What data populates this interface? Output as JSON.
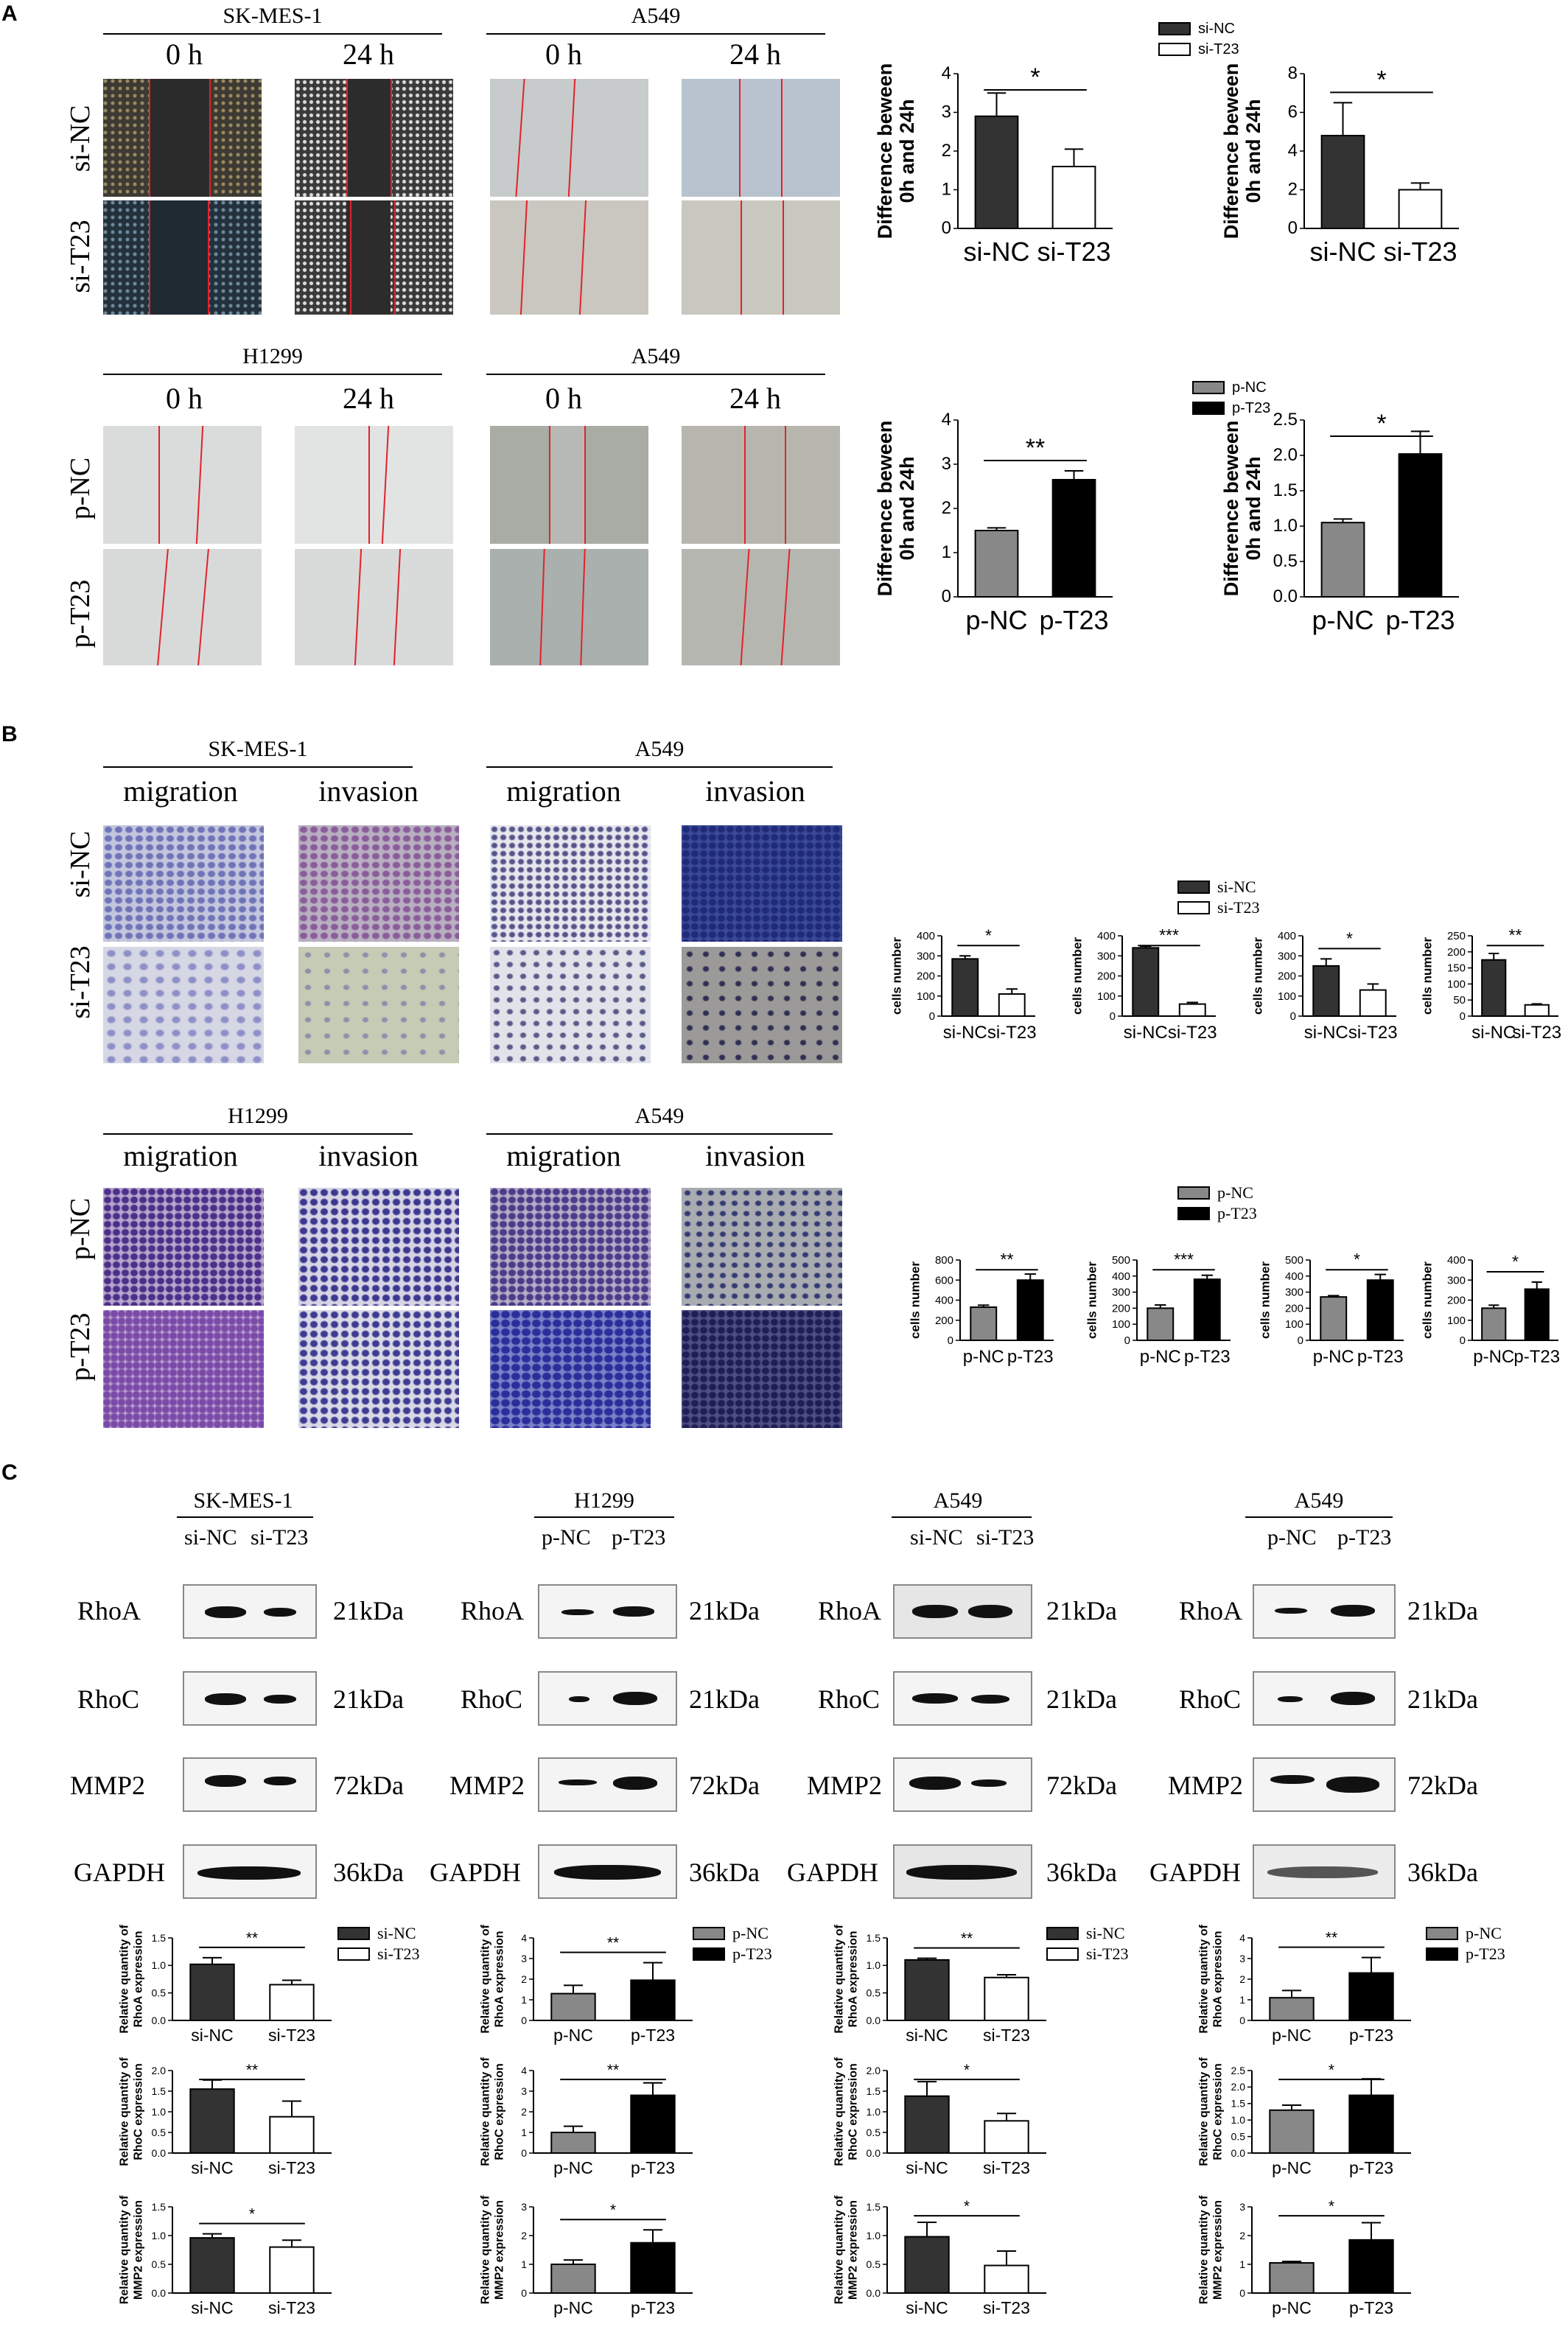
{
  "panels": {
    "a": "A",
    "b": "B",
    "c": "C"
  },
  "colors": {
    "dark": "#333333",
    "white": "#ffffff",
    "grey": "#888888",
    "black": "#000000",
    "scratch": "#e2222a"
  },
  "panelA": {
    "top": {
      "cell1": "SK-MES-1",
      "cell2": "A549",
      "t0": "0 h",
      "t24": "24 h",
      "row1": "si-NC",
      "row2": "si-T23"
    },
    "bottom": {
      "cell1": "H1299",
      "cell2": "A549",
      "t0": "0 h",
      "t24": "24 h",
      "row1": "p-NC",
      "row2": "p-T23"
    }
  },
  "panelB": {
    "top": {
      "cell1": "SK-MES-1",
      "cell2": "A549",
      "h1": "migration",
      "h2": "invasion",
      "row1": "si-NC",
      "row2": "si-T23"
    },
    "bottom": {
      "cell1": "H1299",
      "cell2": "A549",
      "h1": "migration",
      "h2": "invasion",
      "row1": "p-NC",
      "row2": "p-T23"
    }
  },
  "panelC": {
    "blots": [
      {
        "cell": "SK-MES-1",
        "lane1": "si-NC",
        "lane2": "si-T23"
      },
      {
        "cell": "H1299",
        "lane1": "p-NC",
        "lane2": "p-T23"
      },
      {
        "cell": "A549",
        "lane1": "si-NC",
        "lane2": "si-T23"
      },
      {
        "cell": "A549",
        "lane1": "p-NC",
        "lane2": "p-T23"
      }
    ],
    "proteins": [
      "RhoA",
      "RhoC",
      "MMP2",
      "GAPDH"
    ],
    "kda": [
      "21kDa",
      "21kDa",
      "72kDa",
      "36kDa"
    ]
  },
  "legends": {
    "si": [
      "si-NC",
      "si-T23"
    ],
    "p": [
      "p-NC",
      "p-T23"
    ]
  },
  "chart_data": [
    {
      "id": "a1",
      "type": "bar",
      "categories": [
        "si-NC",
        "si-T23"
      ],
      "values": [
        2.9,
        1.6
      ],
      "errors": [
        0.6,
        0.45
      ],
      "fills": [
        "dark",
        "white"
      ],
      "ylabel": "Difference beween\n0h and 24h",
      "ylim": [
        0,
        4
      ],
      "yticks": [
        0,
        1,
        2,
        3,
        4
      ],
      "sig": "*",
      "grid": false
    },
    {
      "id": "a2",
      "type": "bar",
      "categories": [
        "si-NC",
        "si-T23"
      ],
      "values": [
        4.8,
        2.0
      ],
      "errors": [
        1.7,
        0.35
      ],
      "fills": [
        "dark",
        "white"
      ],
      "ylabel": "Difference beween\n0h and 24h",
      "ylim": [
        0,
        8
      ],
      "yticks": [
        0,
        2,
        4,
        6,
        8
      ],
      "sig": "*",
      "grid": false
    },
    {
      "id": "a3",
      "type": "bar",
      "categories": [
        "p-NC",
        "p-T23"
      ],
      "values": [
        1.5,
        2.65
      ],
      "errors": [
        0.06,
        0.2
      ],
      "fills": [
        "grey",
        "black"
      ],
      "ylabel": "Difference beween\n0h and 24h",
      "ylim": [
        0,
        4
      ],
      "yticks": [
        0,
        1,
        2,
        3,
        4
      ],
      "sig": "**",
      "grid": false
    },
    {
      "id": "a4",
      "type": "bar",
      "categories": [
        "p-NC",
        "p-T23"
      ],
      "values": [
        1.05,
        2.02
      ],
      "errors": [
        0.05,
        0.32
      ],
      "fills": [
        "grey",
        "black"
      ],
      "ylabel": "Difference beween\n0h and 24h",
      "ylim": [
        0,
        2.5
      ],
      "yticks": [
        0.0,
        0.5,
        1.0,
        1.5,
        2.0,
        2.5
      ],
      "sig": "*",
      "grid": false
    },
    {
      "id": "b1",
      "type": "bar",
      "categories": [
        "si-NC",
        "si-T23"
      ],
      "values": [
        285,
        110
      ],
      "errors": [
        15,
        25
      ],
      "fills": [
        "dark",
        "white"
      ],
      "ylabel": "cells number",
      "ylim": [
        0,
        400
      ],
      "yticks": [
        0,
        100,
        200,
        300,
        400
      ],
      "sig": "*",
      "grid": false
    },
    {
      "id": "b2",
      "type": "bar",
      "categories": [
        "si-NC",
        "si-T23"
      ],
      "values": [
        340,
        60
      ],
      "errors": [
        8,
        8
      ],
      "fills": [
        "dark",
        "white"
      ],
      "ylabel": "cells number",
      "ylim": [
        0,
        400
      ],
      "yticks": [
        0,
        100,
        200,
        300,
        400
      ],
      "sig": "***",
      "grid": false
    },
    {
      "id": "b3",
      "type": "bar",
      "categories": [
        "si-NC",
        "si-T23"
      ],
      "values": [
        250,
        130
      ],
      "errors": [
        35,
        30
      ],
      "fills": [
        "dark",
        "white"
      ],
      "ylabel": "cells number",
      "ylim": [
        0,
        400
      ],
      "yticks": [
        0,
        100,
        200,
        300,
        400
      ],
      "sig": "*",
      "grid": false
    },
    {
      "id": "b4",
      "type": "bar",
      "categories": [
        "si-NC",
        "si-T23"
      ],
      "values": [
        175,
        35
      ],
      "errors": [
        20,
        3
      ],
      "fills": [
        "dark",
        "white"
      ],
      "ylabel": "cells number",
      "ylim": [
        0,
        250
      ],
      "yticks": [
        0,
        50,
        100,
        150,
        200,
        250
      ],
      "sig": "**",
      "grid": false
    },
    {
      "id": "b5",
      "type": "bar",
      "categories": [
        "p-NC",
        "p-T23"
      ],
      "values": [
        330,
        600
      ],
      "errors": [
        20,
        60
      ],
      "fills": [
        "grey",
        "black"
      ],
      "ylabel": "cells number",
      "ylim": [
        0,
        800
      ],
      "yticks": [
        0,
        200,
        400,
        600,
        800
      ],
      "sig": "**",
      "grid": false
    },
    {
      "id": "b6",
      "type": "bar",
      "categories": [
        "p-NC",
        "p-T23"
      ],
      "values": [
        200,
        380
      ],
      "errors": [
        20,
        25
      ],
      "fills": [
        "grey",
        "black"
      ],
      "ylabel": "cells number",
      "ylim": [
        0,
        500
      ],
      "yticks": [
        0,
        100,
        200,
        300,
        400,
        500
      ],
      "sig": "***",
      "grid": false
    },
    {
      "id": "b7",
      "type": "bar",
      "categories": [
        "p-NC",
        "p-T23"
      ],
      "values": [
        270,
        375
      ],
      "errors": [
        8,
        35
      ],
      "fills": [
        "grey",
        "black"
      ],
      "ylabel": "cells number",
      "ylim": [
        0,
        500
      ],
      "yticks": [
        0,
        100,
        200,
        300,
        400,
        500
      ],
      "sig": "*",
      "grid": false
    },
    {
      "id": "b8",
      "type": "bar",
      "categories": [
        "p-NC",
        "p-T23"
      ],
      "values": [
        160,
        255
      ],
      "errors": [
        15,
        35
      ],
      "fills": [
        "grey",
        "black"
      ],
      "ylabel": "cells number",
      "ylim": [
        0,
        400
      ],
      "yticks": [
        0,
        100,
        200,
        300,
        400
      ],
      "sig": "*",
      "grid": false
    },
    {
      "id": "c1",
      "type": "bar",
      "categories": [
        "si-NC",
        "si-T23"
      ],
      "values": [
        1.02,
        0.65
      ],
      "errors": [
        0.12,
        0.08
      ],
      "fills": [
        "dark",
        "white"
      ],
      "ylabel": "Relative quantity of\nRhoA expression",
      "ylim": [
        0,
        1.5
      ],
      "yticks": [
        0.0,
        0.5,
        1.0,
        1.5
      ],
      "sig": "**",
      "grid": false
    },
    {
      "id": "c2",
      "type": "bar",
      "categories": [
        "p-NC",
        "p-T23"
      ],
      "values": [
        1.3,
        1.95
      ],
      "errors": [
        0.4,
        0.85
      ],
      "fills": [
        "grey",
        "black"
      ],
      "ylabel": "Relative quantity of\nRhoA expression",
      "ylim": [
        0,
        4
      ],
      "yticks": [
        0,
        1,
        2,
        3,
        4
      ],
      "sig": "**",
      "grid": false
    },
    {
      "id": "c3",
      "type": "bar",
      "categories": [
        "si-NC",
        "si-T23"
      ],
      "values": [
        1.1,
        0.78
      ],
      "errors": [
        0.03,
        0.05
      ],
      "fills": [
        "dark",
        "white"
      ],
      "ylabel": "Relative quantity of\nRhoA expression",
      "ylim": [
        0,
        1.5
      ],
      "yticks": [
        0.0,
        0.5,
        1.0,
        1.5
      ],
      "sig": "**",
      "grid": false
    },
    {
      "id": "c4",
      "type": "bar",
      "categories": [
        "p-NC",
        "p-T23"
      ],
      "values": [
        1.1,
        2.3
      ],
      "errors": [
        0.35,
        0.75
      ],
      "fills": [
        "grey",
        "black"
      ],
      "ylabel": "Relative quantity of\nRhoA expression",
      "ylim": [
        0,
        4
      ],
      "yticks": [
        0,
        1,
        2,
        3,
        4
      ],
      "sig": "**",
      "grid": false
    },
    {
      "id": "c5",
      "type": "bar",
      "categories": [
        "si-NC",
        "si-T23"
      ],
      "values": [
        1.55,
        0.88
      ],
      "errors": [
        0.22,
        0.38
      ],
      "fills": [
        "dark",
        "white"
      ],
      "ylabel": "Relative quantity of\nRhoC expression",
      "ylim": [
        0,
        2.0
      ],
      "yticks": [
        0.0,
        0.5,
        1.0,
        1.5,
        2.0
      ],
      "sig": "**",
      "grid": false
    },
    {
      "id": "c6",
      "type": "bar",
      "categories": [
        "p-NC",
        "p-T23"
      ],
      "values": [
        1.0,
        2.8
      ],
      "errors": [
        0.3,
        0.6
      ],
      "fills": [
        "grey",
        "black"
      ],
      "ylabel": "Relative quantity of\nRhoC expression",
      "ylim": [
        0,
        4
      ],
      "yticks": [
        0,
        1,
        2,
        3,
        4
      ],
      "sig": "**",
      "grid": false
    },
    {
      "id": "c7",
      "type": "bar",
      "categories": [
        "si-NC",
        "si-T23"
      ],
      "values": [
        1.38,
        0.78
      ],
      "errors": [
        0.35,
        0.18
      ],
      "fills": [
        "dark",
        "white"
      ],
      "ylabel": "Relative quantity of\nRhoC expression",
      "ylim": [
        0,
        2.0
      ],
      "yticks": [
        0.0,
        0.5,
        1.0,
        1.5,
        2.0
      ],
      "sig": "*",
      "grid": false
    },
    {
      "id": "c8",
      "type": "bar",
      "categories": [
        "p-NC",
        "p-T23"
      ],
      "values": [
        1.3,
        1.75
      ],
      "errors": [
        0.15,
        0.5
      ],
      "fills": [
        "grey",
        "black"
      ],
      "ylabel": "Relative quantity of\nRhoC expression",
      "ylim": [
        0,
        2.5
      ],
      "yticks": [
        0.0,
        0.5,
        1.0,
        1.5,
        2.0,
        2.5
      ],
      "sig": "*",
      "grid": false
    },
    {
      "id": "c9",
      "type": "bar",
      "categories": [
        "si-NC",
        "si-T23"
      ],
      "values": [
        0.96,
        0.8
      ],
      "errors": [
        0.07,
        0.12
      ],
      "fills": [
        "dark",
        "white"
      ],
      "ylabel": "Relative quantity of\nMMP2 expression",
      "ylim": [
        0,
        1.5
      ],
      "yticks": [
        0.0,
        0.5,
        1.0,
        1.5
      ],
      "sig": "*",
      "grid": false
    },
    {
      "id": "c10",
      "type": "bar",
      "categories": [
        "p-NC",
        "p-T23"
      ],
      "values": [
        1.0,
        1.75
      ],
      "errors": [
        0.15,
        0.45
      ],
      "fills": [
        "grey",
        "black"
      ],
      "ylabel": "Relative quantity of\nMMP2 expression",
      "ylim": [
        0,
        3
      ],
      "yticks": [
        0,
        1,
        2,
        3
      ],
      "sig": "*",
      "grid": false
    },
    {
      "id": "c11",
      "type": "bar",
      "categories": [
        "si-NC",
        "si-T23"
      ],
      "values": [
        0.98,
        0.48
      ],
      "errors": [
        0.25,
        0.25
      ],
      "fills": [
        "dark",
        "white"
      ],
      "ylabel": "Relative quantity of\nMMP2 expression",
      "ylim": [
        0,
        1.5
      ],
      "yticks": [
        0.0,
        0.5,
        1.0,
        1.5
      ],
      "sig": "*",
      "grid": false
    },
    {
      "id": "c12",
      "type": "bar",
      "categories": [
        "p-NC",
        "p-T23"
      ],
      "values": [
        1.05,
        1.85
      ],
      "errors": [
        0.05,
        0.6
      ],
      "fills": [
        "grey",
        "black"
      ],
      "ylabel": "Relative quantity of\nMMP2 expression",
      "ylim": [
        0,
        3
      ],
      "yticks": [
        0,
        1,
        2,
        3
      ],
      "sig": "*",
      "grid": false
    }
  ]
}
